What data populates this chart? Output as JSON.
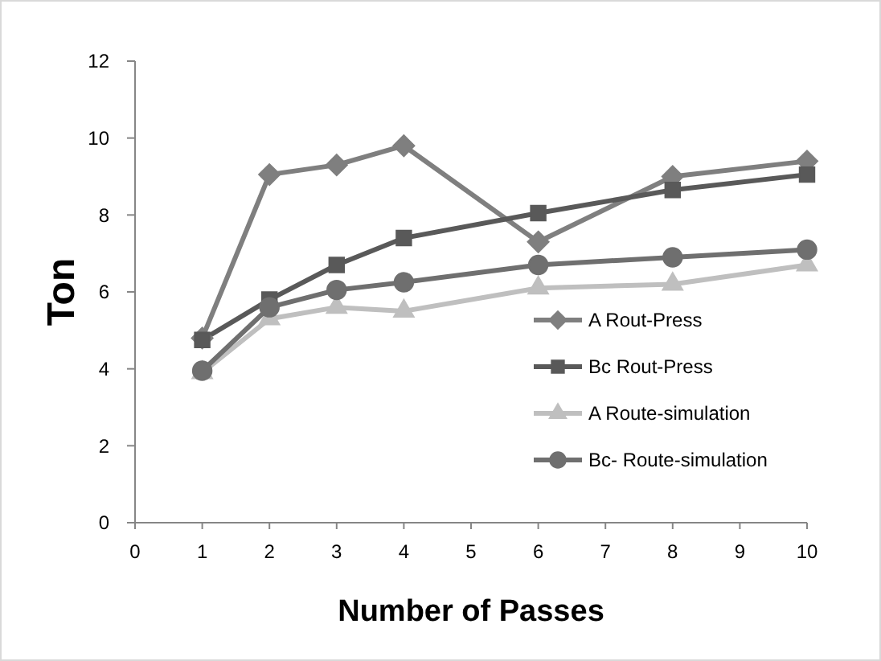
{
  "chart_data": {
    "type": "line",
    "xlabel": "Number of Passes",
    "ylabel": "Ton",
    "x": [
      1,
      2,
      3,
      4,
      6,
      8,
      10
    ],
    "xlim": [
      0,
      10
    ],
    "xticks": [
      0,
      1,
      2,
      3,
      4,
      5,
      6,
      7,
      8,
      9,
      10
    ],
    "ylim": [
      0,
      12
    ],
    "yticks": [
      0,
      2,
      4,
      6,
      8,
      10,
      12
    ],
    "grid": false,
    "legend": "bottom right",
    "series": [
      {
        "name": "A Rout-Press",
        "color": "#7f7f7f",
        "marker": "diamond",
        "values": [
          4.8,
          9.05,
          9.3,
          9.8,
          7.3,
          9.0,
          9.4
        ]
      },
      {
        "name": "Bc Rout-Press",
        "color": "#595959",
        "marker": "square",
        "values": [
          4.75,
          5.8,
          6.7,
          7.4,
          8.05,
          8.65,
          9.05
        ]
      },
      {
        "name": "A Route-simulation",
        "color": "#bfbfbf",
        "marker": "triangle",
        "values": [
          3.9,
          5.3,
          5.6,
          5.5,
          6.1,
          6.2,
          6.7
        ]
      },
      {
        "name": "Bc- Route-simulation",
        "color": "#6f6f6f",
        "marker": "circle",
        "values": [
          3.95,
          5.6,
          6.05,
          6.25,
          6.7,
          6.9,
          7.1
        ]
      }
    ]
  }
}
